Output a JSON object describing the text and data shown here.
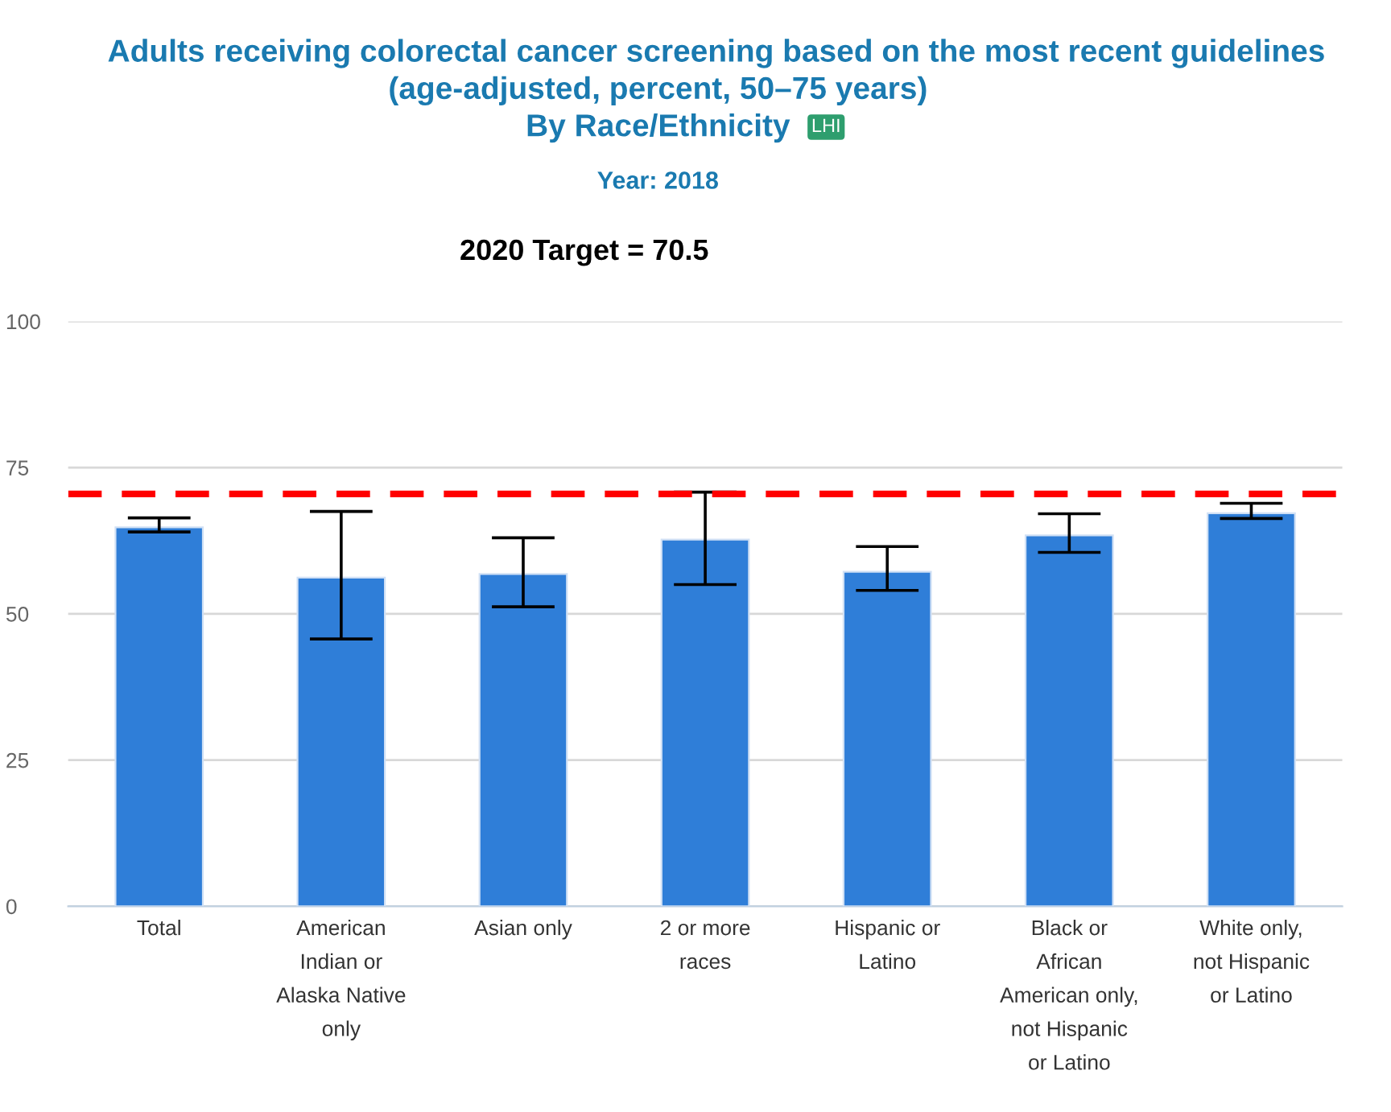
{
  "chart_data": {
    "type": "bar",
    "title": "Adults receiving colorectal cancer screening based on the most recent guidelines\n(age-adjusted, percent, 50–75 years)\nBy Race/Ethnicity",
    "subtitle": "Year: 2018",
    "annotations": [
      "LHI",
      "2020 Target = 70.5"
    ],
    "categories": [
      "Total",
      "American Indian or Alaska Native only",
      "Asian only",
      "2 or more races",
      "Hispanic or Latino",
      "Black or African American only, not Hispanic or Latino",
      "White only, not Hispanic or Latino"
    ],
    "values": [
      64.8,
      56.2,
      56.8,
      62.7,
      57.2,
      63.4,
      67.2
    ],
    "errors": [
      [
        64.0,
        66.4
      ],
      [
        45.7,
        67.5
      ],
      [
        51.2,
        63.0
      ],
      [
        55.0,
        70.8
      ],
      [
        54.0,
        61.5
      ],
      [
        60.5,
        67.1
      ],
      [
        66.3,
        68.9
      ]
    ],
    "color": "#2f7ed8",
    "ylim": [
      0,
      100
    ],
    "yticks": [
      0,
      25,
      50,
      75,
      100
    ],
    "grid": "y",
    "ref_lines": [
      {
        "axis": "y",
        "value": 70.5,
        "color": "#ff0000",
        "line_style": "dashed"
      }
    ]
  }
}
